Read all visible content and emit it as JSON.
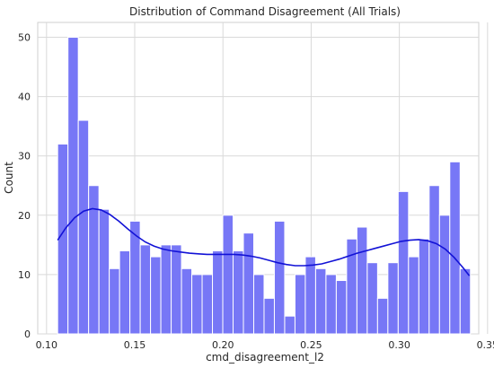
{
  "chart_data": {
    "type": "bar",
    "subtype": "histogram_with_kde",
    "title": "Distribution of Command Disagreement (All Trials)",
    "xlabel": "cmd_disagreement_l2",
    "ylabel": "Count",
    "xlim": [
      0.095,
      0.345
    ],
    "ylim": [
      0,
      52.5
    ],
    "grid": true,
    "bar_color": "#7777f6",
    "kde_color": "#1212d6",
    "x_ticks": [
      "0.10",
      "0.15",
      "0.20",
      "0.25",
      "0.30",
      "0.35"
    ],
    "y_ticks": [
      "0",
      "10",
      "20",
      "30",
      "40",
      "50"
    ],
    "bin_start": 0.1063,
    "bin_width": 0.00585,
    "values": [
      32,
      50,
      36,
      25,
      21,
      11,
      14,
      19,
      15,
      13,
      15,
      15,
      11,
      10,
      10,
      14,
      20,
      14,
      17,
      10,
      6,
      19,
      3,
      10,
      13,
      11,
      10,
      9,
      16,
      18,
      12,
      6,
      12,
      24,
      13,
      16,
      25,
      20,
      29,
      11
    ],
    "kde": {
      "x": [
        0.1063,
        0.111,
        0.116,
        0.121,
        0.126,
        0.131,
        0.136,
        0.141,
        0.146,
        0.151,
        0.156,
        0.161,
        0.166,
        0.171,
        0.176,
        0.181,
        0.186,
        0.191,
        0.196,
        0.201,
        0.206,
        0.211,
        0.216,
        0.221,
        0.226,
        0.231,
        0.236,
        0.241,
        0.246,
        0.251,
        0.256,
        0.261,
        0.266,
        0.271,
        0.276,
        0.281,
        0.286,
        0.291,
        0.296,
        0.301,
        0.306,
        0.311,
        0.316,
        0.321,
        0.326,
        0.331,
        0.336,
        0.3397
      ],
      "y": [
        15.8,
        17.9,
        19.6,
        20.7,
        21.1,
        20.9,
        20.1,
        19.0,
        17.7,
        16.5,
        15.5,
        14.8,
        14.3,
        14.0,
        13.8,
        13.6,
        13.5,
        13.4,
        13.4,
        13.4,
        13.4,
        13.3,
        13.1,
        12.8,
        12.4,
        12.0,
        11.7,
        11.5,
        11.5,
        11.6,
        11.8,
        12.2,
        12.6,
        13.1,
        13.6,
        14.0,
        14.4,
        14.8,
        15.2,
        15.6,
        15.8,
        15.9,
        15.7,
        15.2,
        14.3,
        12.9,
        11.2,
        9.8
      ]
    }
  }
}
